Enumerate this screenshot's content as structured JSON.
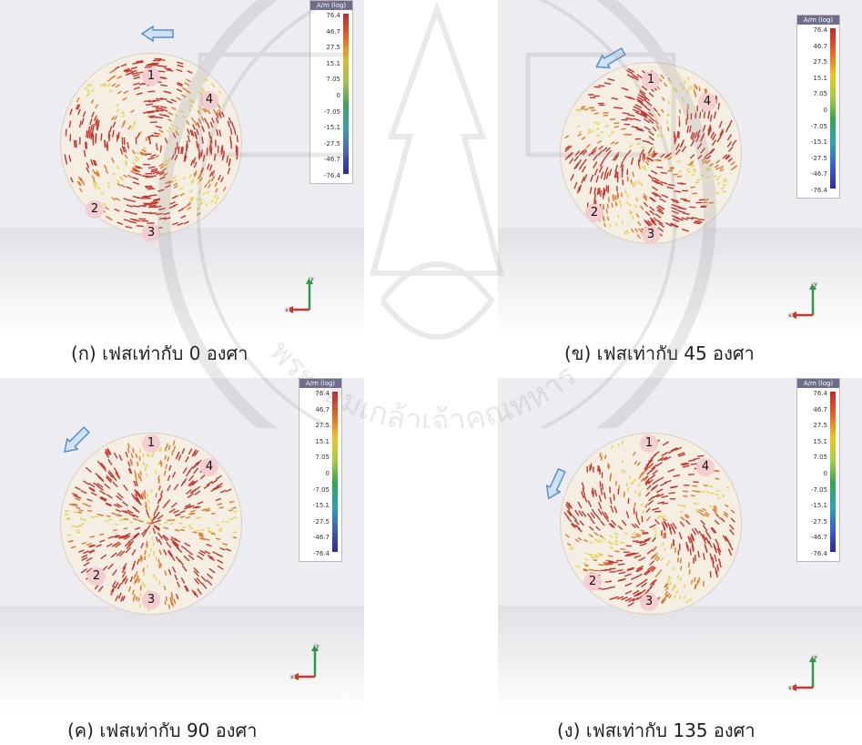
{
  "legend": {
    "header": "A/m (log)",
    "ticks": [
      "76.4",
      "46.7",
      "27.5",
      "15.1",
      "7.05",
      "0",
      "-7.05",
      "-15.1",
      "-27.5",
      "-46.7",
      "-76.4"
    ]
  },
  "ports": [
    "1",
    "2",
    "3",
    "4"
  ],
  "axis_labels": {
    "x": "x",
    "y": "y"
  },
  "watermark_text": "พระจอมเกล้าเจ้าคุณทหาร",
  "panels": [
    {
      "caption": "(ก) เฟสเท่ากับ 0 องศา",
      "phase_deg": 0
    },
    {
      "caption": "(ข) เฟสเท่ากับ 45 องศา",
      "phase_deg": 45
    },
    {
      "caption": "(ค) เฟสเท่ากับ 90 องศา",
      "phase_deg": 90
    },
    {
      "caption": "(ง) เฟสเท่ากับ 135 องศา",
      "phase_deg": 135
    }
  ],
  "colors": {
    "field_hot": "#c8362c",
    "field_warm": "#e07a2a",
    "field_low": "#e6d24a",
    "arrow": "#6fa8dc"
  }
}
